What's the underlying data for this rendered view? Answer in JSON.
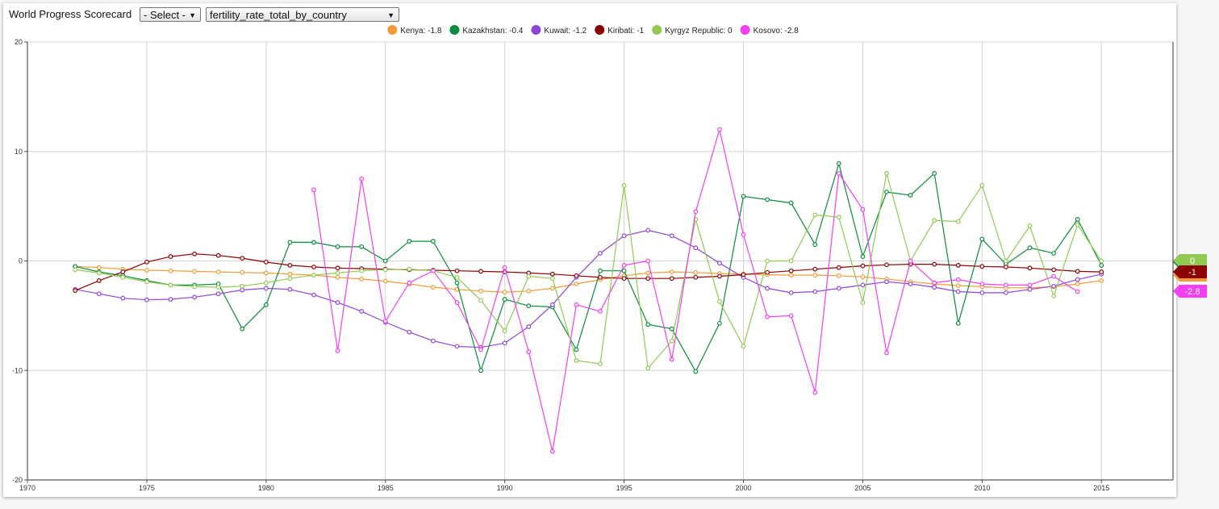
{
  "header": {
    "title": "World Progress Scorecard",
    "select_country": "- Select -",
    "select_indicator": "fertility_rate_total_by_country"
  },
  "icons": {
    "dropdown": "chevron-down-icon"
  },
  "chart_data": {
    "type": "line",
    "title": "",
    "xlabel": "",
    "ylabel": "",
    "xlim": [
      1970,
      2018
    ],
    "ylim": [
      -20,
      20
    ],
    "xticks": [
      "1970",
      "1975",
      "1980",
      "1985",
      "1990",
      "1995",
      "2000",
      "2005",
      "2010",
      "2015"
    ],
    "yticks": [
      "20",
      "10",
      "0",
      "-10",
      "-20"
    ],
    "grid": true,
    "legend_position": "top",
    "series": [
      {
        "name": "Kenya",
        "legend": "Kenya: -1.8",
        "end_label": "-1.8",
        "color": "#f59b36",
        "points": [
          [
            1972,
            -0.5
          ],
          [
            1973,
            -0.6
          ],
          [
            1974,
            -0.75
          ],
          [
            1975,
            -0.85
          ],
          [
            1976,
            -0.9
          ],
          [
            1977,
            -0.95
          ],
          [
            1978,
            -1.0
          ],
          [
            1979,
            -1.05
          ],
          [
            1980,
            -1.1
          ],
          [
            1981,
            -1.2
          ],
          [
            1982,
            -1.3
          ],
          [
            1983,
            -1.5
          ],
          [
            1984,
            -1.65
          ],
          [
            1985,
            -1.85
          ],
          [
            1986,
            -2.1
          ],
          [
            1987,
            -2.4
          ],
          [
            1988,
            -2.6
          ],
          [
            1989,
            -2.75
          ],
          [
            1990,
            -2.85
          ],
          [
            1991,
            -2.75
          ],
          [
            1992,
            -2.5
          ],
          [
            1993,
            -2.1
          ],
          [
            1994,
            -1.7
          ],
          [
            1995,
            -1.35
          ],
          [
            1996,
            -1.1
          ],
          [
            1997,
            -1.0
          ],
          [
            1998,
            -1.05
          ],
          [
            1999,
            -1.15
          ],
          [
            2000,
            -1.2
          ],
          [
            2001,
            -1.25
          ],
          [
            2002,
            -1.3
          ],
          [
            2003,
            -1.3
          ],
          [
            2004,
            -1.35
          ],
          [
            2005,
            -1.45
          ],
          [
            2006,
            -1.65
          ],
          [
            2007,
            -1.9
          ],
          [
            2008,
            -2.1
          ],
          [
            2009,
            -2.25
          ],
          [
            2010,
            -2.35
          ],
          [
            2011,
            -2.45
          ],
          [
            2012,
            -2.45
          ],
          [
            2013,
            -2.35
          ],
          [
            2014,
            -2.1
          ],
          [
            2015,
            -1.8
          ]
        ]
      },
      {
        "name": "Kazakhstan",
        "legend": "Kazakhstan: -0.4",
        "end_label": "-0.4",
        "color": "#0b8c3b",
        "points": [
          [
            1972,
            -0.5
          ],
          [
            1973,
            -1.0
          ],
          [
            1974,
            -1.35
          ],
          [
            1975,
            -1.8
          ],
          [
            1976,
            -2.2
          ],
          [
            1977,
            -2.2
          ],
          [
            1978,
            -2.1
          ],
          [
            1979,
            -6.2
          ],
          [
            1980,
            -4.0
          ],
          [
            1981,
            1.7
          ],
          [
            1982,
            1.7
          ],
          [
            1983,
            1.3
          ],
          [
            1984,
            1.3
          ],
          [
            1985,
            0.0
          ],
          [
            1986,
            1.8
          ],
          [
            1987,
            1.8
          ],
          [
            1988,
            -2.0
          ],
          [
            1989,
            -10.0
          ],
          [
            1990,
            -3.5
          ],
          [
            1991,
            -4.1
          ],
          [
            1992,
            -4.2
          ],
          [
            1993,
            -8.1
          ],
          [
            1994,
            -0.9
          ],
          [
            1995,
            -0.9
          ],
          [
            1996,
            -5.8
          ],
          [
            1997,
            -6.2
          ],
          [
            1998,
            -10.1
          ],
          [
            1999,
            -5.7
          ],
          [
            2000,
            5.9
          ],
          [
            2001,
            5.6
          ],
          [
            2002,
            5.3
          ],
          [
            2003,
            1.5
          ],
          [
            2004,
            8.9
          ],
          [
            2005,
            0.4
          ],
          [
            2006,
            6.3
          ],
          [
            2007,
            6.0
          ],
          [
            2008,
            8.0
          ],
          [
            2009,
            -5.7
          ],
          [
            2010,
            2.0
          ],
          [
            2011,
            -0.3
          ],
          [
            2012,
            1.2
          ],
          [
            2013,
            0.7
          ],
          [
            2014,
            3.8
          ],
          [
            2015,
            -0.4
          ]
        ]
      },
      {
        "name": "Kuwait",
        "legend": "Kuwait: -1.2",
        "end_label": "-1.2",
        "color": "#8d46d4",
        "points": [
          [
            1972,
            -2.6
          ],
          [
            1973,
            -3.0
          ],
          [
            1974,
            -3.4
          ],
          [
            1975,
            -3.55
          ],
          [
            1976,
            -3.5
          ],
          [
            1977,
            -3.3
          ],
          [
            1978,
            -3.0
          ],
          [
            1979,
            -2.65
          ],
          [
            1980,
            -2.5
          ],
          [
            1981,
            -2.6
          ],
          [
            1982,
            -3.1
          ],
          [
            1983,
            -3.8
          ],
          [
            1984,
            -4.6
          ],
          [
            1985,
            -5.6
          ],
          [
            1986,
            -6.5
          ],
          [
            1987,
            -7.3
          ],
          [
            1988,
            -7.8
          ],
          [
            1989,
            -7.9
          ],
          [
            1990,
            -7.5
          ],
          [
            1991,
            -6.0
          ],
          [
            1992,
            -4.0
          ],
          [
            1993,
            -1.5
          ],
          [
            1994,
            0.7
          ],
          [
            1995,
            2.3
          ],
          [
            1996,
            2.8
          ],
          [
            1997,
            2.3
          ],
          [
            1998,
            1.2
          ],
          [
            1999,
            -0.2
          ],
          [
            2000,
            -1.5
          ],
          [
            2001,
            -2.5
          ],
          [
            2002,
            -2.9
          ],
          [
            2003,
            -2.8
          ],
          [
            2004,
            -2.5
          ],
          [
            2005,
            -2.2
          ],
          [
            2006,
            -1.9
          ],
          [
            2007,
            -2.1
          ],
          [
            2008,
            -2.4
          ],
          [
            2009,
            -2.8
          ],
          [
            2010,
            -2.9
          ],
          [
            2011,
            -2.9
          ],
          [
            2012,
            -2.6
          ],
          [
            2013,
            -2.3
          ],
          [
            2014,
            -1.7
          ],
          [
            2015,
            -1.2
          ]
        ]
      },
      {
        "name": "Kiribati",
        "legend": "Kiribati: -1",
        "end_label": "-1",
        "color": "#8b0000",
        "points": [
          [
            1972,
            -2.7
          ],
          [
            1973,
            -1.8
          ],
          [
            1974,
            -1.0
          ],
          [
            1975,
            -0.1
          ],
          [
            1976,
            0.4
          ],
          [
            1977,
            0.65
          ],
          [
            1978,
            0.5
          ],
          [
            1979,
            0.25
          ],
          [
            1980,
            -0.1
          ],
          [
            1981,
            -0.4
          ],
          [
            1982,
            -0.55
          ],
          [
            1983,
            -0.65
          ],
          [
            1984,
            -0.7
          ],
          [
            1985,
            -0.75
          ],
          [
            1986,
            -0.8
          ],
          [
            1987,
            -0.85
          ],
          [
            1988,
            -0.9
          ],
          [
            1989,
            -0.95
          ],
          [
            1990,
            -1.0
          ],
          [
            1991,
            -1.1
          ],
          [
            1992,
            -1.2
          ],
          [
            1993,
            -1.35
          ],
          [
            1994,
            -1.5
          ],
          [
            1995,
            -1.6
          ],
          [
            1996,
            -1.6
          ],
          [
            1997,
            -1.6
          ],
          [
            1998,
            -1.5
          ],
          [
            1999,
            -1.4
          ],
          [
            2000,
            -1.25
          ],
          [
            2001,
            -1.05
          ],
          [
            2002,
            -0.9
          ],
          [
            2003,
            -0.75
          ],
          [
            2004,
            -0.6
          ],
          [
            2005,
            -0.45
          ],
          [
            2006,
            -0.35
          ],
          [
            2007,
            -0.3
          ],
          [
            2008,
            -0.3
          ],
          [
            2009,
            -0.4
          ],
          [
            2010,
            -0.5
          ],
          [
            2011,
            -0.55
          ],
          [
            2012,
            -0.65
          ],
          [
            2013,
            -0.8
          ],
          [
            2014,
            -0.95
          ],
          [
            2015,
            -1.0
          ]
        ]
      },
      {
        "name": "Kyrgyz Republic",
        "legend": "Kyrgyz Republic: 0",
        "end_label": "0",
        "color": "#92c952",
        "points": [
          [
            1972,
            -0.8
          ],
          [
            1973,
            -1.1
          ],
          [
            1974,
            -1.5
          ],
          [
            1975,
            -1.9
          ],
          [
            1976,
            -2.2
          ],
          [
            1977,
            -2.35
          ],
          [
            1978,
            -2.4
          ],
          [
            1979,
            -2.3
          ],
          [
            1980,
            -2.0
          ],
          [
            1981,
            -1.6
          ],
          [
            1982,
            -1.3
          ],
          [
            1983,
            -1.1
          ],
          [
            1984,
            -0.9
          ],
          [
            1985,
            -0.8
          ],
          [
            1986,
            -0.75
          ],
          [
            1987,
            -0.9
          ],
          [
            1988,
            -1.5
          ],
          [
            1989,
            -3.6
          ],
          [
            1990,
            -6.4
          ],
          [
            1991,
            -1.4
          ],
          [
            1992,
            -1.6
          ],
          [
            1993,
            -9.1
          ],
          [
            1994,
            -9.4
          ],
          [
            1995,
            6.9
          ],
          [
            1996,
            -9.8
          ],
          [
            1997,
            -7.3
          ],
          [
            1998,
            3.8
          ],
          [
            1999,
            -3.7
          ],
          [
            2000,
            -7.8
          ],
          [
            2001,
            0.0
          ],
          [
            2002,
            0.0
          ],
          [
            2003,
            4.2
          ],
          [
            2004,
            4.0
          ],
          [
            2005,
            -3.8
          ],
          [
            2006,
            8.0
          ],
          [
            2007,
            0.0
          ],
          [
            2008,
            3.7
          ],
          [
            2009,
            3.6
          ],
          [
            2010,
            6.9
          ],
          [
            2011,
            0.0
          ],
          [
            2012,
            3.2
          ],
          [
            2013,
            -3.2
          ],
          [
            2014,
            3.3
          ],
          [
            2015,
            0.0
          ]
        ]
      },
      {
        "name": "Kosovo",
        "legend": "Kosovo: -2.8",
        "end_label": "-2.8",
        "color": "#f13ff1",
        "points": [
          [
            1982,
            6.5
          ],
          [
            1983,
            -8.2
          ],
          [
            1984,
            7.5
          ],
          [
            1985,
            -5.5
          ],
          [
            1986,
            -2.0
          ],
          [
            1987,
            -0.9
          ],
          [
            1988,
            -3.8
          ],
          [
            1989,
            -8.1
          ],
          [
            1990,
            -0.6
          ],
          [
            1991,
            -8.3
          ],
          [
            1992,
            -17.4
          ],
          [
            1993,
            -4.0
          ],
          [
            1994,
            -4.6
          ],
          [
            1995,
            -0.4
          ],
          [
            1996,
            0.0
          ],
          [
            1997,
            -9.0
          ],
          [
            1998,
            4.5
          ],
          [
            1999,
            12.0
          ],
          [
            2000,
            2.4
          ],
          [
            2001,
            -5.1
          ],
          [
            2002,
            -5.0
          ],
          [
            2003,
            -12.0
          ],
          [
            2004,
            8.0
          ],
          [
            2005,
            4.7
          ],
          [
            2006,
            -8.4
          ],
          [
            2007,
            0.0
          ],
          [
            2008,
            -2.0
          ],
          [
            2009,
            -1.7
          ],
          [
            2010,
            -2.1
          ],
          [
            2011,
            -2.2
          ],
          [
            2012,
            -2.2
          ],
          [
            2013,
            -1.4
          ],
          [
            2014,
            -2.8
          ]
        ]
      }
    ]
  }
}
